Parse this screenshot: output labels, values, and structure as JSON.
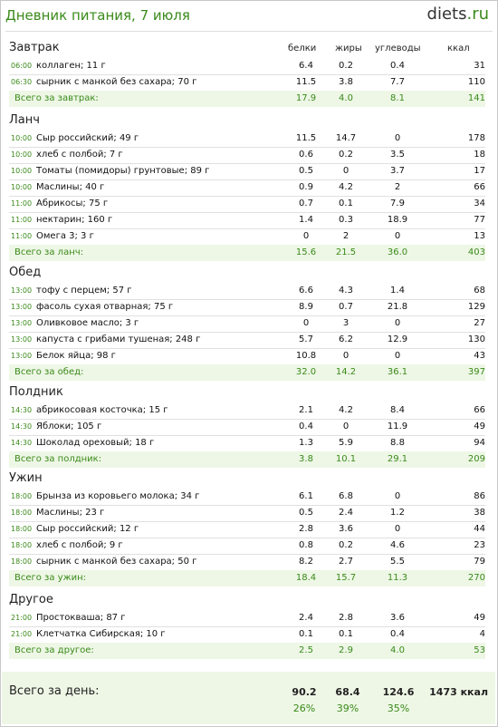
{
  "header": {
    "title": "Дневник питания, 7 июля",
    "logo_main": "diets",
    "logo_suffix": ".ru"
  },
  "columns": {
    "protein": "белки",
    "fat": "жиры",
    "carbs": "углеводы",
    "kcal": "ккал"
  },
  "meals": [
    {
      "name": "Завтрак",
      "items": [
        {
          "time": "06:00",
          "name": "коллаген; 11 г",
          "p": "6.4",
          "f": "0.2",
          "c": "0.4",
          "k": "31"
        },
        {
          "time": "06:30",
          "name": "сырник с манкой без сахара; 70 г",
          "p": "11.5",
          "f": "3.8",
          "c": "7.7",
          "k": "110"
        }
      ],
      "total": {
        "label": "Всего за завтрак:",
        "p": "17.9",
        "f": "4.0",
        "c": "8.1",
        "k": "141"
      }
    },
    {
      "name": "Ланч",
      "items": [
        {
          "time": "10:00",
          "name": "Сыр российский; 49 г",
          "p": "11.5",
          "f": "14.7",
          "c": "0",
          "k": "178"
        },
        {
          "time": "10:00",
          "name": "хлеб с полбой; 7 г",
          "p": "0.6",
          "f": "0.2",
          "c": "3.5",
          "k": "18"
        },
        {
          "time": "10:00",
          "name": "Томаты (помидоры) грунтовые; 89 г",
          "p": "0.5",
          "f": "0",
          "c": "3.7",
          "k": "17"
        },
        {
          "time": "10:00",
          "name": "Маслины; 40 г",
          "p": "0.9",
          "f": "4.2",
          "c": "2",
          "k": "66"
        },
        {
          "time": "11:00",
          "name": "Абрикосы; 75 г",
          "p": "0.7",
          "f": "0.1",
          "c": "7.9",
          "k": "34"
        },
        {
          "time": "11:00",
          "name": "нектарин; 160 г",
          "p": "1.4",
          "f": "0.3",
          "c": "18.9",
          "k": "77"
        },
        {
          "time": "11:00",
          "name": "Омега 3; 3 г",
          "p": "0",
          "f": "2",
          "c": "0",
          "k": "13"
        }
      ],
      "total": {
        "label": "Всего за ланч:",
        "p": "15.6",
        "f": "21.5",
        "c": "36.0",
        "k": "403"
      }
    },
    {
      "name": "Обед",
      "items": [
        {
          "time": "13:00",
          "name": "тофу с перцем; 57 г",
          "p": "6.6",
          "f": "4.3",
          "c": "1.4",
          "k": "68"
        },
        {
          "time": "13:00",
          "name": "фасоль сухая отварная; 75 г",
          "p": "8.9",
          "f": "0.7",
          "c": "21.8",
          "k": "129"
        },
        {
          "time": "13:00",
          "name": "Оливковое масло; 3 г",
          "p": "0",
          "f": "3",
          "c": "0",
          "k": "27"
        },
        {
          "time": "13:00",
          "name": "капуста с грибами тушеная; 248 г",
          "p": "5.7",
          "f": "6.2",
          "c": "12.9",
          "k": "130"
        },
        {
          "time": "13:00",
          "name": "Белок яйца; 98 г",
          "p": "10.8",
          "f": "0",
          "c": "0",
          "k": "43"
        }
      ],
      "total": {
        "label": "Всего за обед:",
        "p": "32.0",
        "f": "14.2",
        "c": "36.1",
        "k": "397"
      }
    },
    {
      "name": "Полдник",
      "items": [
        {
          "time": "14:30",
          "name": "абрикосовая косточка; 15 г",
          "p": "2.1",
          "f": "4.2",
          "c": "8.4",
          "k": "66"
        },
        {
          "time": "14:30",
          "name": "Яблоки; 105 г",
          "p": "0.4",
          "f": "0",
          "c": "11.9",
          "k": "49"
        },
        {
          "time": "14:30",
          "name": "Шоколад ореховый; 18 г",
          "p": "1.3",
          "f": "5.9",
          "c": "8.8",
          "k": "94"
        }
      ],
      "total": {
        "label": "Всего за полдник:",
        "p": "3.8",
        "f": "10.1",
        "c": "29.1",
        "k": "209"
      }
    },
    {
      "name": "Ужин",
      "items": [
        {
          "time": "18:00",
          "name": "Брынза из коровьего молока; 34 г",
          "p": "6.1",
          "f": "6.8",
          "c": "0",
          "k": "86"
        },
        {
          "time": "18:00",
          "name": "Маслины; 23 г",
          "p": "0.5",
          "f": "2.4",
          "c": "1.2",
          "k": "38"
        },
        {
          "time": "18:00",
          "name": "Сыр российский; 12 г",
          "p": "2.8",
          "f": "3.6",
          "c": "0",
          "k": "44"
        },
        {
          "time": "18:00",
          "name": "хлеб с полбой; 9 г",
          "p": "0.8",
          "f": "0.2",
          "c": "4.6",
          "k": "23"
        },
        {
          "time": "18:00",
          "name": "сырник с манкой без сахара; 50 г",
          "p": "8.2",
          "f": "2.7",
          "c": "5.5",
          "k": "79"
        }
      ],
      "total": {
        "label": "Всего за ужин:",
        "p": "18.4",
        "f": "15.7",
        "c": "11.3",
        "k": "270"
      }
    },
    {
      "name": "Другое",
      "items": [
        {
          "time": "21:00",
          "name": "Простокваша; 87 г",
          "p": "2.4",
          "f": "2.8",
          "c": "3.6",
          "k": "49"
        },
        {
          "time": "21:00",
          "name": "Клетчатка Сибирская; 10 г",
          "p": "0.1",
          "f": "0.1",
          "c": "0.4",
          "k": "4"
        }
      ],
      "total": {
        "label": "Всего за другое:",
        "p": "2.5",
        "f": "2.9",
        "c": "4.0",
        "k": "53"
      }
    }
  ],
  "day_total": {
    "label": "Всего за день:",
    "p": "90.2",
    "f": "68.4",
    "c": "124.6",
    "k": "1473 ккал",
    "p_pct": "26%",
    "f_pct": "39%",
    "c_pct": "35%"
  }
}
